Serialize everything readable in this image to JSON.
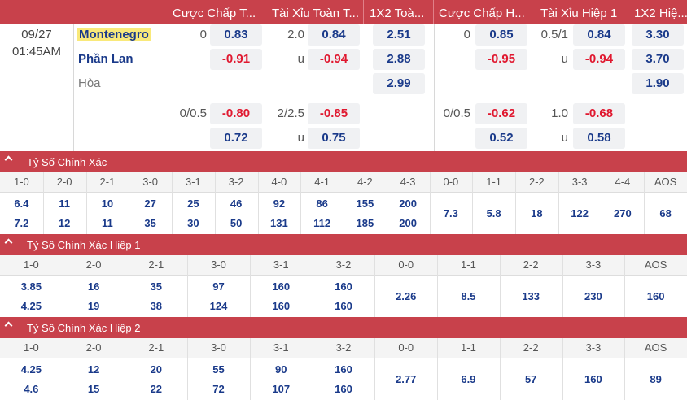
{
  "header": {
    "cols": [
      "Cược Chấp T...",
      "Tài Xỉu Toàn T...",
      "1X2 Toà...",
      "Cược Chấp H...",
      "Tài Xỉu Hiệp 1",
      "1X2 Hiệ..."
    ]
  },
  "match": {
    "date": "09/27",
    "time": "01:45AM",
    "home": "Montenegro",
    "away": "Phần Lan",
    "draw": "Hòa"
  },
  "main_odds": {
    "row1": {
      "h1": "0",
      "o1": "0.83",
      "h2": "2.0",
      "o2": "0.84",
      "x1": "2.51",
      "h3": "0",
      "o3": "0.85",
      "h4": "0.5/1",
      "o4": "0.84",
      "x2": "3.30"
    },
    "row2": {
      "o1": "-0.91",
      "h2": "u",
      "o2": "-0.94",
      "x1": "2.88",
      "o3": "-0.95",
      "h4": "u",
      "o4": "-0.94",
      "x2": "3.70"
    },
    "row3": {
      "x1": "2.99",
      "x2": "1.90"
    },
    "row4": {
      "h1": "0/0.5",
      "o1": "-0.80",
      "h2": "2/2.5",
      "o2": "-0.85",
      "h3": "0/0.5",
      "o3": "-0.62",
      "h4": "1.0",
      "o4": "-0.68"
    },
    "row5": {
      "o1": "0.72",
      "h2": "u",
      "o2": "0.75",
      "o3": "0.52",
      "h4": "u",
      "o4": "0.58"
    }
  },
  "sections": [
    {
      "title": "Tỷ Số Chính Xác",
      "labels": [
        "1-0",
        "2-0",
        "2-1",
        "3-0",
        "3-1",
        "3-2",
        "4-0",
        "4-1",
        "4-2",
        "4-3",
        "0-0",
        "1-1",
        "2-2",
        "3-3",
        "4-4",
        "AOS"
      ],
      "top": [
        "6.4",
        "11",
        "10",
        "27",
        "25",
        "46",
        "92",
        "86",
        "155",
        "200",
        "7.3",
        "5.8",
        "18",
        "122",
        "270",
        "68"
      ],
      "bottom": [
        "7.2",
        "12",
        "11",
        "35",
        "30",
        "50",
        "131",
        "112",
        "185",
        "200",
        "",
        "",
        "",
        "",
        "",
        ""
      ]
    },
    {
      "title": "Tỷ Số Chính Xác Hiệp 1",
      "labels": [
        "1-0",
        "2-0",
        "2-1",
        "3-0",
        "3-1",
        "3-2",
        "0-0",
        "1-1",
        "2-2",
        "3-3",
        "AOS"
      ],
      "top": [
        "3.85",
        "16",
        "35",
        "97",
        "160",
        "160",
        "2.26",
        "8.5",
        "133",
        "230",
        "160"
      ],
      "bottom": [
        "4.25",
        "19",
        "38",
        "124",
        "160",
        "160",
        "",
        "",
        "",
        "",
        ""
      ]
    },
    {
      "title": "Tỷ Số Chính Xác Hiệp 2",
      "labels": [
        "1-0",
        "2-0",
        "2-1",
        "3-0",
        "3-1",
        "3-2",
        "0-0",
        "1-1",
        "2-2",
        "3-3",
        "AOS"
      ],
      "top": [
        "4.25",
        "12",
        "20",
        "55",
        "90",
        "160",
        "2.77",
        "6.9",
        "57",
        "160",
        "89"
      ],
      "bottom": [
        "4.6",
        "15",
        "22",
        "72",
        "107",
        "160",
        "",
        "",
        "",
        "",
        ""
      ]
    }
  ]
}
